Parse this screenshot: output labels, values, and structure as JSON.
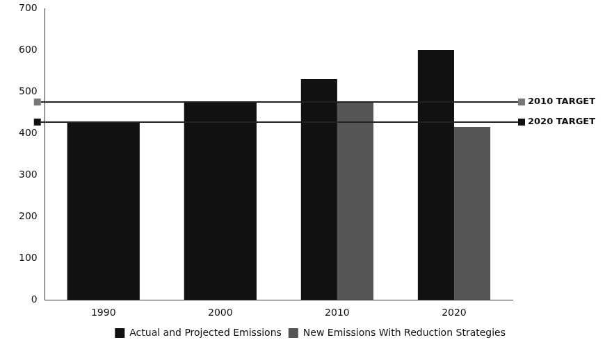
{
  "chart_data": {
    "type": "bar",
    "categories": [
      "1990",
      "2000",
      "2010",
      "2020"
    ],
    "series": [
      {
        "name": "Actual and Projected Emissions",
        "color": "#111111",
        "values": [
          427,
          475,
          530,
          600
        ]
      },
      {
        "name": "New Emissions With Reduction Strategies",
        "color": "#555555",
        "values": [
          null,
          null,
          475,
          415
        ]
      }
    ],
    "ylim": [
      0,
      700
    ],
    "yticks": [
      0,
      100,
      200,
      300,
      400,
      500,
      600,
      700
    ],
    "grid": false,
    "legend": "bottom-right",
    "annotations": [
      {
        "text": "2010 TARGET",
        "y": 475,
        "color": "#777777"
      },
      {
        "text": "2020 TARGET",
        "y": 427,
        "color": "#111111"
      }
    ]
  }
}
